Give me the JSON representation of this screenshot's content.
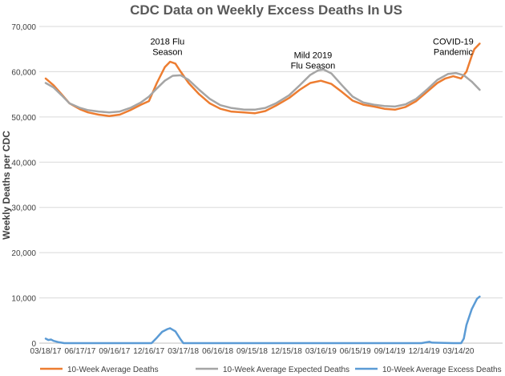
{
  "chart_data": {
    "type": "line",
    "title": "CDC Data on Weekly Excess Deaths In US",
    "ylabel": "Weekly Deaths per CDC",
    "xlabel": "",
    "ylim": [
      0,
      70000
    ],
    "yticks": [
      0,
      10000,
      20000,
      30000,
      40000,
      50000,
      60000,
      70000
    ],
    "ytick_labels": [
      "0",
      "10,000",
      "20,000",
      "30,000",
      "40,000",
      "50,000",
      "60,000",
      "70,000"
    ],
    "xtick_labels": [
      "03/18/17",
      "06/17/17",
      "09/16/17",
      "12/16/17",
      "03/17/18",
      "06/16/18",
      "09/15/18",
      "12/15/18",
      "03/16/19",
      "06/15/19",
      "09/14/19",
      "12/14/19",
      "03/14/20"
    ],
    "grid": "horizontal",
    "legend_position": "bottom",
    "annotations": [
      {
        "lines": [
          "2018 Flu",
          "Season"
        ],
        "date": "02/03/18",
        "value": 66000
      },
      {
        "lines": [
          "Mild 2019",
          "Flu Season"
        ],
        "date": "02/23/19",
        "value": 63000
      },
      {
        "lines": [
          "COVID-19",
          "Pandemic"
        ],
        "date": "02/29/20",
        "value": 66000
      }
    ],
    "series": [
      {
        "name": "10-Week Average Deaths",
        "color": "#ED7D31",
        "points": [
          [
            "03/18/17",
            58500
          ],
          [
            "04/08/17",
            57000
          ],
          [
            "04/29/17",
            55000
          ],
          [
            "05/20/17",
            53000
          ],
          [
            "06/17/17",
            51700
          ],
          [
            "07/08/17",
            51000
          ],
          [
            "08/05/17",
            50500
          ],
          [
            "09/02/17",
            50200
          ],
          [
            "09/30/17",
            50500
          ],
          [
            "10/28/17",
            51500
          ],
          [
            "11/25/17",
            52700
          ],
          [
            "12/16/17",
            53500
          ],
          [
            "01/06/18",
            57500
          ],
          [
            "01/27/18",
            61000
          ],
          [
            "02/10/18",
            62200
          ],
          [
            "02/24/18",
            61800
          ],
          [
            "03/10/18",
            60000
          ],
          [
            "03/31/18",
            57500
          ],
          [
            "04/28/18",
            55000
          ],
          [
            "05/26/18",
            53000
          ],
          [
            "06/23/18",
            51800
          ],
          [
            "07/21/18",
            51200
          ],
          [
            "08/25/18",
            51000
          ],
          [
            "09/22/18",
            50800
          ],
          [
            "10/20/18",
            51300
          ],
          [
            "11/17/18",
            52500
          ],
          [
            "12/22/18",
            54200
          ],
          [
            "01/19/19",
            56000
          ],
          [
            "02/16/19",
            57500
          ],
          [
            "03/16/19",
            58000
          ],
          [
            "04/13/19",
            57300
          ],
          [
            "05/11/19",
            55500
          ],
          [
            "06/08/19",
            53600
          ],
          [
            "07/06/19",
            52700
          ],
          [
            "08/03/19",
            52300
          ],
          [
            "08/31/19",
            51800
          ],
          [
            "09/28/19",
            51600
          ],
          [
            "10/26/19",
            52200
          ],
          [
            "11/23/19",
            53500
          ],
          [
            "12/21/19",
            55500
          ],
          [
            "01/18/20",
            57500
          ],
          [
            "02/08/20",
            58500
          ],
          [
            "02/29/20",
            59000
          ],
          [
            "03/21/20",
            58500
          ],
          [
            "04/04/20",
            60000
          ],
          [
            "04/18/20",
            63500
          ],
          [
            "04/25/20",
            65000
          ],
          [
            "05/09/20",
            66200
          ]
        ]
      },
      {
        "name": "10-Week Average Expected Deaths",
        "color": "#A5A5A5",
        "points": [
          [
            "03/18/17",
            57500
          ],
          [
            "04/08/17",
            56500
          ],
          [
            "04/29/17",
            54800
          ],
          [
            "05/20/17",
            53000
          ],
          [
            "06/17/17",
            52000
          ],
          [
            "07/08/17",
            51500
          ],
          [
            "08/05/17",
            51200
          ],
          [
            "09/02/17",
            51000
          ],
          [
            "09/30/17",
            51200
          ],
          [
            "10/28/17",
            52000
          ],
          [
            "11/25/17",
            53200
          ],
          [
            "12/16/17",
            54500
          ],
          [
            "01/06/18",
            56300
          ],
          [
            "01/27/18",
            58000
          ],
          [
            "02/17/18",
            59100
          ],
          [
            "03/10/18",
            59200
          ],
          [
            "03/31/18",
            58200
          ],
          [
            "04/28/18",
            56000
          ],
          [
            "05/26/18",
            54000
          ],
          [
            "06/23/18",
            52600
          ],
          [
            "07/21/18",
            52000
          ],
          [
            "08/25/18",
            51600
          ],
          [
            "09/22/18",
            51600
          ],
          [
            "10/20/18",
            52000
          ],
          [
            "11/17/18",
            53000
          ],
          [
            "12/22/18",
            54800
          ],
          [
            "01/19/19",
            57000
          ],
          [
            "02/16/19",
            59300
          ],
          [
            "03/09/19",
            60300
          ],
          [
            "03/23/19",
            60500
          ],
          [
            "04/13/19",
            59600
          ],
          [
            "05/11/19",
            57000
          ],
          [
            "06/08/19",
            54500
          ],
          [
            "07/06/19",
            53200
          ],
          [
            "08/03/19",
            52700
          ],
          [
            "08/31/19",
            52400
          ],
          [
            "09/28/19",
            52300
          ],
          [
            "10/26/19",
            52800
          ],
          [
            "11/23/19",
            54000
          ],
          [
            "12/21/19",
            56000
          ],
          [
            "01/18/20",
            58200
          ],
          [
            "02/15/20",
            59500
          ],
          [
            "03/07/20",
            59700
          ],
          [
            "03/28/20",
            59200
          ],
          [
            "04/18/20",
            57800
          ],
          [
            "05/09/20",
            56000
          ]
        ]
      },
      {
        "name": "10-Week Average Excess Deaths",
        "color": "#5B9BD5",
        "points": [
          [
            "03/18/17",
            1000
          ],
          [
            "03/25/17",
            700
          ],
          [
            "04/01/17",
            800
          ],
          [
            "04/08/17",
            500
          ],
          [
            "04/22/17",
            200
          ],
          [
            "05/06/17",
            0
          ],
          [
            "12/23/17",
            0
          ],
          [
            "01/06/18",
            1200
          ],
          [
            "01/20/18",
            2500
          ],
          [
            "02/03/18",
            3100
          ],
          [
            "02/10/18",
            3300
          ],
          [
            "02/24/18",
            2600
          ],
          [
            "03/10/18",
            800
          ],
          [
            "03/17/18",
            0
          ],
          [
            "12/07/19",
            0
          ],
          [
            "12/21/19",
            200
          ],
          [
            "12/28/19",
            300
          ],
          [
            "01/04/20",
            100
          ],
          [
            "02/29/20",
            0
          ],
          [
            "03/21/20",
            0
          ],
          [
            "03/28/20",
            1000
          ],
          [
            "04/04/20",
            4000
          ],
          [
            "04/18/20",
            7500
          ],
          [
            "05/02/20",
            9800
          ],
          [
            "05/09/20",
            10300
          ]
        ]
      }
    ]
  }
}
